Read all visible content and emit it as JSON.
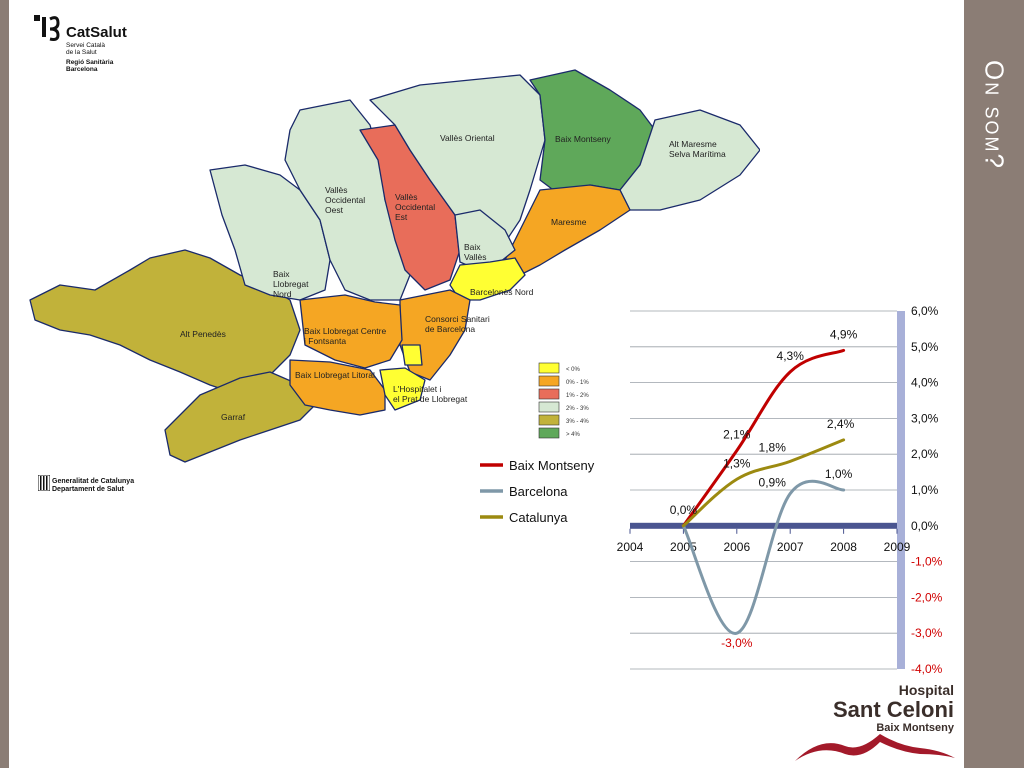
{
  "slide": {
    "title": "On som?"
  },
  "header_logo": {
    "brand": "CatSalut",
    "line1": "Servei Català",
    "line2": "de la Salut",
    "line3": "Regió Sanitària",
    "line4": "Barcelona"
  },
  "footer_logo": {
    "line1": "Generalitat de Catalunya",
    "line2": "Departament de Salut"
  },
  "hospital_logo": {
    "line1": "Hospital",
    "line2": "Sant Celoni",
    "line3": "Baix Montseny"
  },
  "map": {
    "regions": [
      {
        "label1": "Vallès Oriental",
        "label2": ""
      },
      {
        "label1": "Baix Montseny",
        "label2": ""
      },
      {
        "label1": "Alt Maresme",
        "label2": "Selva Marítima"
      },
      {
        "label1": "Vallès",
        "label2": "Occidental",
        "label3": "Oest"
      },
      {
        "label1": "Vallès",
        "label2": "Occidental",
        "label3": "Est"
      },
      {
        "label1": "Maresme",
        "label2": ""
      },
      {
        "label1": "Baix",
        "label2": "Vallès"
      },
      {
        "label1": "Barcelonès Nord",
        "label2": ""
      },
      {
        "label1": "Baix",
        "label2": "Llobregat",
        "label3": "Nord"
      },
      {
        "label1": "Consorci Sanitari",
        "label2": "de Barcelona"
      },
      {
        "label1": "Baix Llobregat Centre",
        "label2": "i Fontsanta"
      },
      {
        "label1": "Alt Penedès",
        "label2": ""
      },
      {
        "label1": "Baix Llobregat Litoral",
        "label2": ""
      },
      {
        "label1": "L'Hospitalet i",
        "label2": "el Prat de Llobregat"
      },
      {
        "label1": "Garraf",
        "label2": ""
      }
    ],
    "legend": [
      {
        "label": "< 0%",
        "color": "#ffff33"
      },
      {
        "label": "0% - 1%",
        "color": "#f5a623"
      },
      {
        "label": "1% - 2%",
        "color": "#e86d5a"
      },
      {
        "label": "2% - 3%",
        "color": "#d6e8d3"
      },
      {
        "label": "3% - 4%",
        "color": "#c1b23a"
      },
      {
        "label": "> 4%",
        "color": "#5fa85a"
      }
    ]
  },
  "chart_data": {
    "type": "line",
    "title": "",
    "x": [
      2005,
      2006,
      2007,
      2008
    ],
    "xlim": [
      2004,
      2009
    ],
    "ylim": [
      -4,
      6
    ],
    "x_ticks": [
      "2004",
      "2005",
      "2006",
      "2007",
      "2008",
      "2009"
    ],
    "y_ticks": [
      "6,0%",
      "5,0%",
      "4,0%",
      "3,0%",
      "2,0%",
      "1,0%",
      "0,0%",
      "-1,0%",
      "-2,0%",
      "-3,0%",
      "-4,0%"
    ],
    "grid": true,
    "legend_position": "left",
    "series": [
      {
        "name": "Baix Montseny",
        "color": "#c00000",
        "values": [
          0.0,
          2.1,
          4.3,
          4.9
        ],
        "labels": [
          "0,0%",
          "2,1%",
          "4,3%",
          "4,9%"
        ]
      },
      {
        "name": "Barcelona",
        "color": "#7f98a8",
        "values": [
          0.0,
          -3.0,
          0.9,
          1.0
        ],
        "labels": [
          "",
          "-3,0%",
          "0,9%",
          "1,0%"
        ]
      },
      {
        "name": "Catalunya",
        "color": "#9c8a10",
        "values": [
          0.0,
          1.3,
          1.8,
          2.4
        ],
        "labels": [
          "",
          "1,3%",
          "1,8%",
          "2,4%"
        ]
      }
    ]
  }
}
